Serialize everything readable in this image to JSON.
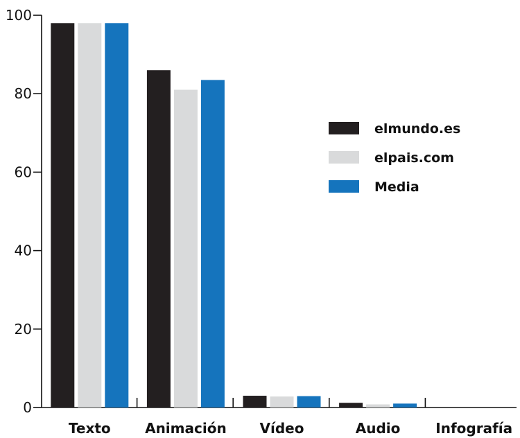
{
  "chart_data": {
    "type": "bar",
    "categories": [
      "Texto",
      "Animación",
      "Vídeo",
      "Audio",
      "Infografía"
    ],
    "series": [
      {
        "name": "elmundo.es",
        "color": "#231f20",
        "values": [
          98,
          86,
          3,
          1.2,
          0
        ]
      },
      {
        "name": "elpais.com",
        "color": "#d9dadb",
        "values": [
          98,
          81,
          2.8,
          0.8,
          0
        ]
      },
      {
        "name": "Media",
        "color": "#1574bd",
        "values": [
          98,
          83.5,
          2.9,
          1.0,
          0
        ]
      }
    ],
    "ylim": [
      0,
      100
    ],
    "yticks": [
      "0",
      "20",
      "40",
      "60",
      "80",
      "100"
    ],
    "legend_position": "top-right",
    "grid": false
  }
}
